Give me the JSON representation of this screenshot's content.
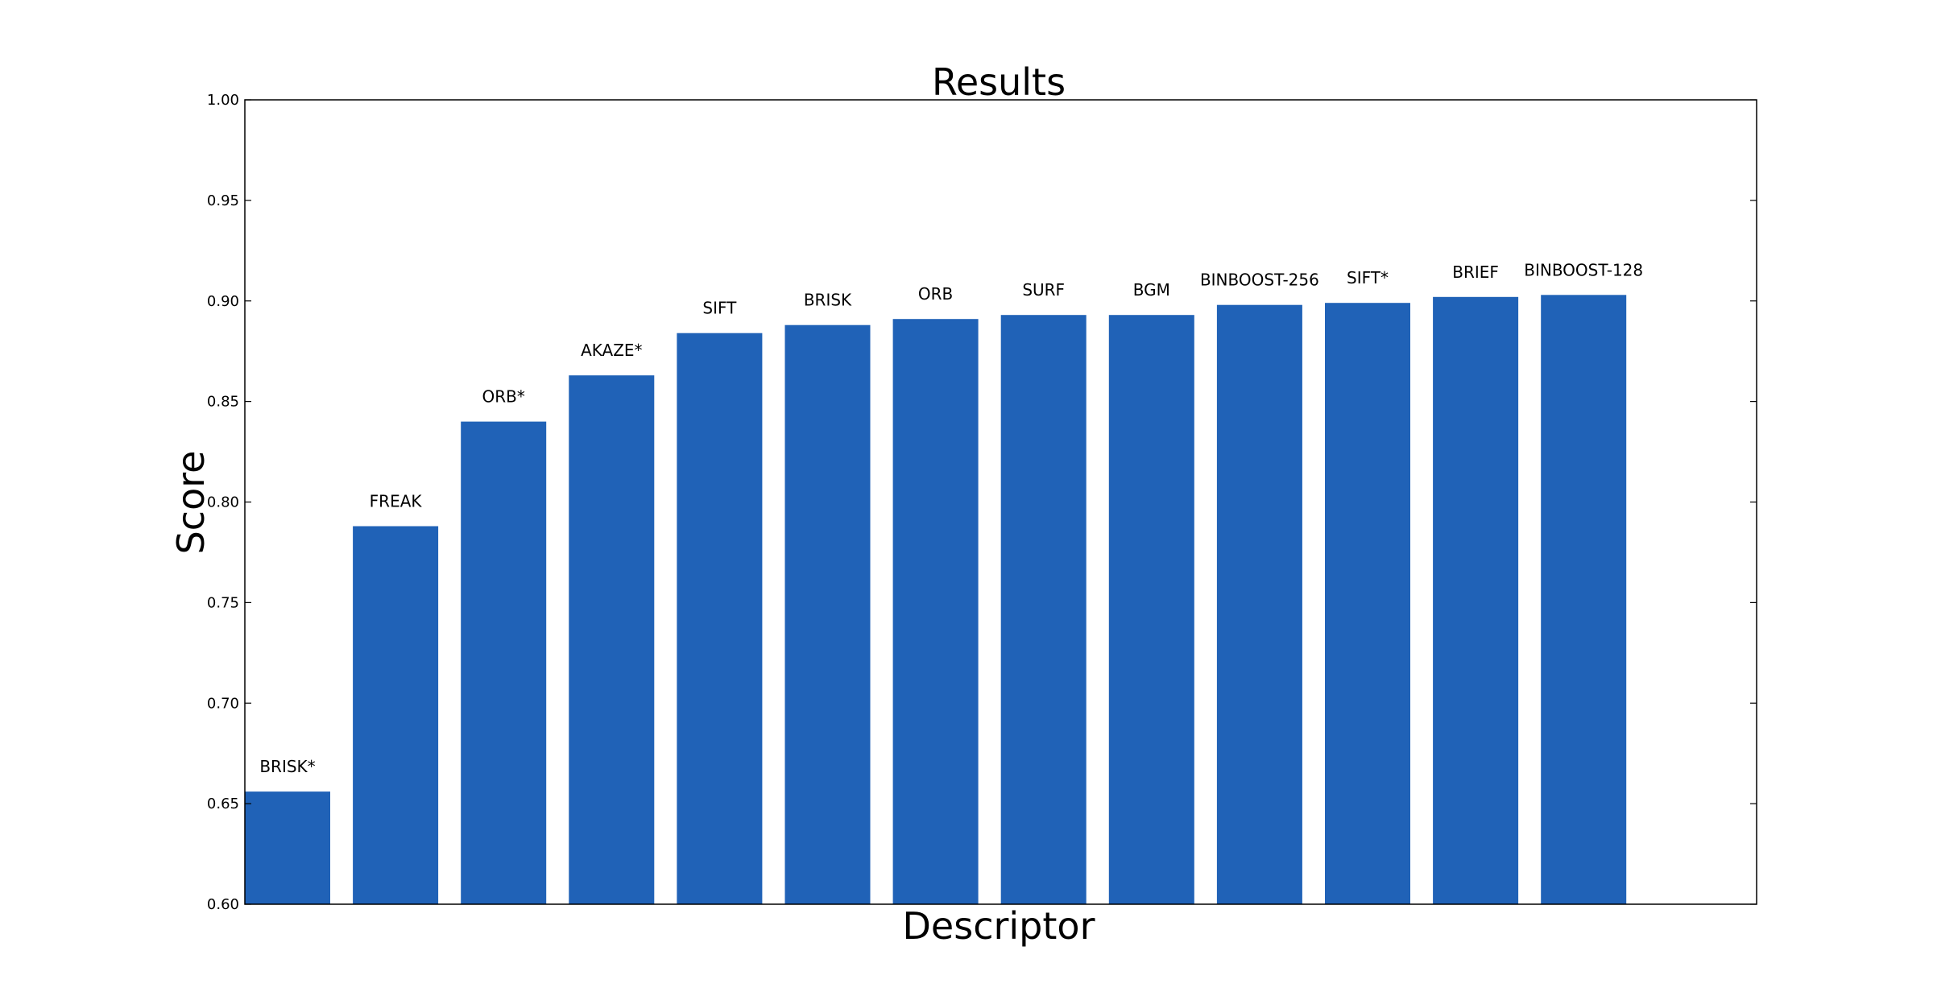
{
  "chart_data": {
    "type": "bar",
    "title": "Results",
    "xlabel": "Descriptor",
    "ylabel": "Score",
    "ylim": [
      0.6,
      1.0
    ],
    "yticks": [
      "0.60",
      "0.65",
      "0.70",
      "0.75",
      "0.80",
      "0.85",
      "0.90",
      "0.95",
      "1.00"
    ],
    "grid": false,
    "legend": "none",
    "bar_color": "#2062b7",
    "categories": [
      "BRISK*",
      "FREAK",
      "ORB*",
      "AKAZE*",
      "SIFT",
      "BRISK",
      "ORB",
      "SURF",
      "BGM",
      "BINBOOST-256",
      "SIFT*",
      "BRIEF",
      "BINBOOST-128"
    ],
    "values": [
      0.656,
      0.788,
      0.84,
      0.863,
      0.884,
      0.888,
      0.891,
      0.893,
      0.893,
      0.898,
      0.899,
      0.902,
      0.903
    ]
  }
}
